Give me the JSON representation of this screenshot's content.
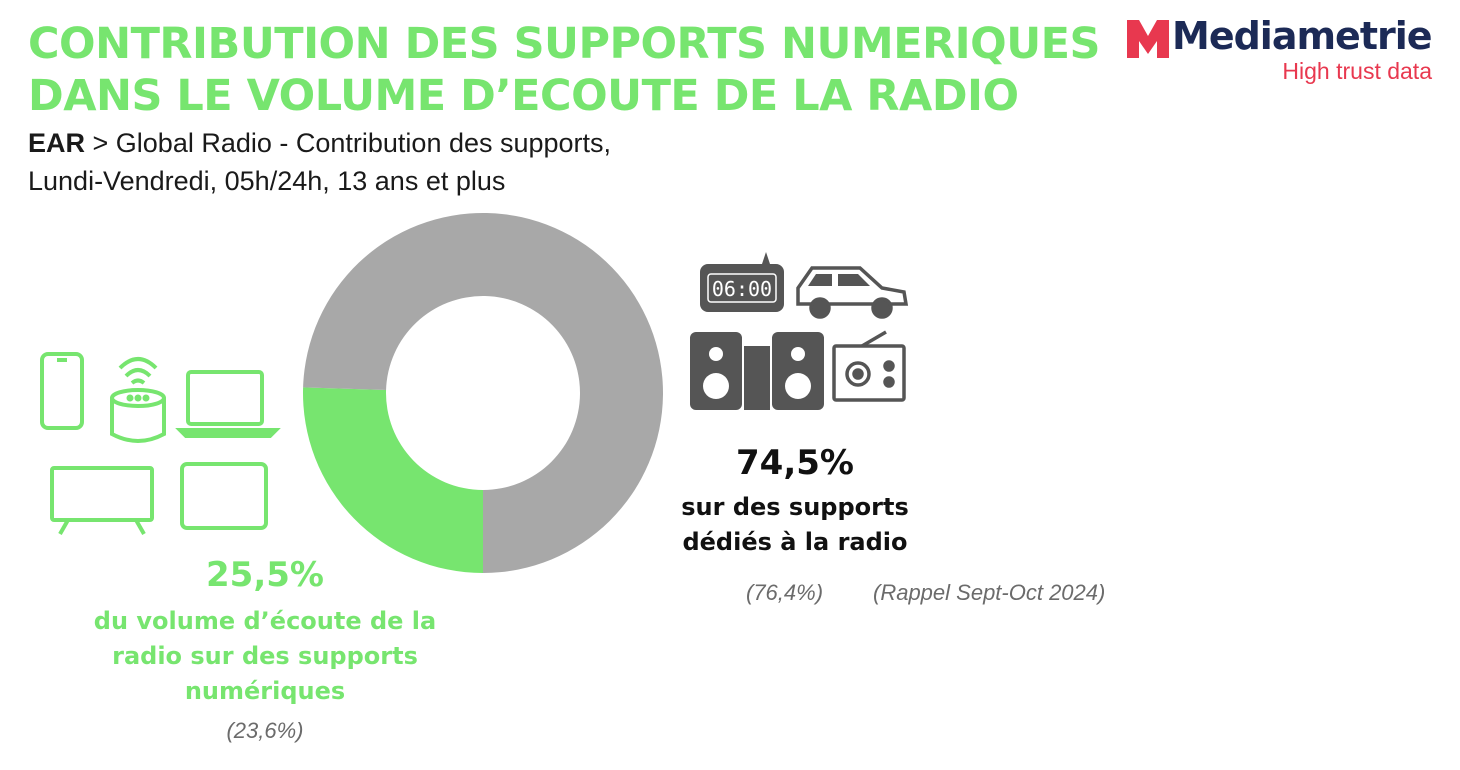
{
  "header": {
    "title_line1": "CONTRIBUTION DES SUPPORTS NUMERIQUES",
    "title_line2": "DANS LE VOLUME D’ECOUTE DE LA RADIO",
    "subtitle_bold": "EAR",
    "subtitle_line1_rest": " > Global Radio - Contribution des supports,",
    "subtitle_line2": "Lundi-Vendredi, 05h/24h, 13 ans et plus"
  },
  "logo": {
    "wordmark": "Mediametrie",
    "tagline": "High trust data",
    "brand_color": "#e8384f",
    "text_color": "#1c2a56"
  },
  "chart_data": {
    "type": "pie",
    "donut": true,
    "slices": [
      {
        "label": "du volume d’écoute de la radio sur des supports numériques",
        "value": 25.5,
        "value_label": "25,5%",
        "previous": "(23,6%)",
        "color": "#77e56f"
      },
      {
        "label": "sur des supports dédiés à la radio",
        "value": 74.5,
        "value_label": "74,5%",
        "previous": "(76,4%)",
        "color": "#a8a8a8"
      }
    ],
    "note": "(Rappel Sept-Oct 2024)"
  },
  "labels": {
    "digital_pct": "25,5%",
    "digital_desc": [
      "du volume d’écoute de la",
      "radio sur des supports",
      "numériques"
    ],
    "digital_prev": "(23,6%)",
    "dedicated_pct": "74,5%",
    "dedicated_desc": [
      "sur des supports",
      "dédiés à la radio"
    ],
    "dedicated_prev": "(76,4%)",
    "rappel": "(Rappel Sept-Oct 2024)",
    "clock_display": "06:00"
  },
  "icons": {
    "digital": [
      "smartphone-icon",
      "smart-speaker-icon",
      "laptop-icon",
      "tv-icon",
      "tablet-icon"
    ],
    "dedicated": [
      "radio-alarm-clock-icon",
      "car-icon",
      "hifi-speakers-icon",
      "radio-set-icon"
    ],
    "digital_color": "#77e56f",
    "dedicated_color": "#555555"
  }
}
